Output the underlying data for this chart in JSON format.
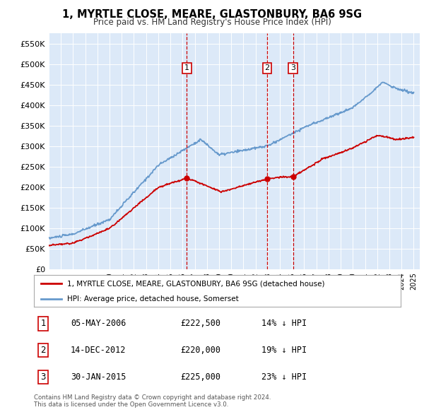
{
  "title": "1, MYRTLE CLOSE, MEARE, GLASTONBURY, BA6 9SG",
  "subtitle": "Price paid vs. HM Land Registry's House Price Index (HPI)",
  "ylim": [
    0,
    575000
  ],
  "yticks": [
    0,
    50000,
    100000,
    150000,
    200000,
    250000,
    300000,
    350000,
    400000,
    450000,
    500000,
    550000
  ],
  "ytick_labels": [
    "£0",
    "£50K",
    "£100K",
    "£150K",
    "£200K",
    "£250K",
    "£300K",
    "£350K",
    "£400K",
    "£450K",
    "£500K",
    "£550K"
  ],
  "plot_bg_color": "#dce9f8",
  "red_line_color": "#cc0000",
  "blue_line_color": "#6699cc",
  "sale_marker_color": "#cc0000",
  "vline_color": "#cc0000",
  "legend_label_red": "1, MYRTLE CLOSE, MEARE, GLASTONBURY, BA6 9SG (detached house)",
  "legend_label_blue": "HPI: Average price, detached house, Somerset",
  "sales": [
    {
      "label": "1",
      "date": "05-MAY-2006",
      "price": 222500,
      "year": 2006.35
    },
    {
      "label": "2",
      "date": "14-DEC-2012",
      "price": 220000,
      "year": 2012.96
    },
    {
      "label": "3",
      "date": "30-JAN-2015",
      "price": 225000,
      "year": 2015.08
    }
  ],
  "footer": "Contains HM Land Registry data © Crown copyright and database right 2024.\nThis data is licensed under the Open Government Licence v3.0.",
  "table_rows": [
    {
      "num": "1",
      "date": "05-MAY-2006",
      "price": "£222,500",
      "pct": "14% ↓ HPI"
    },
    {
      "num": "2",
      "date": "14-DEC-2012",
      "price": "£220,000",
      "pct": "19% ↓ HPI"
    },
    {
      "num": "3",
      "date": "30-JAN-2015",
      "price": "£225,000",
      "pct": "23% ↓ HPI"
    }
  ]
}
